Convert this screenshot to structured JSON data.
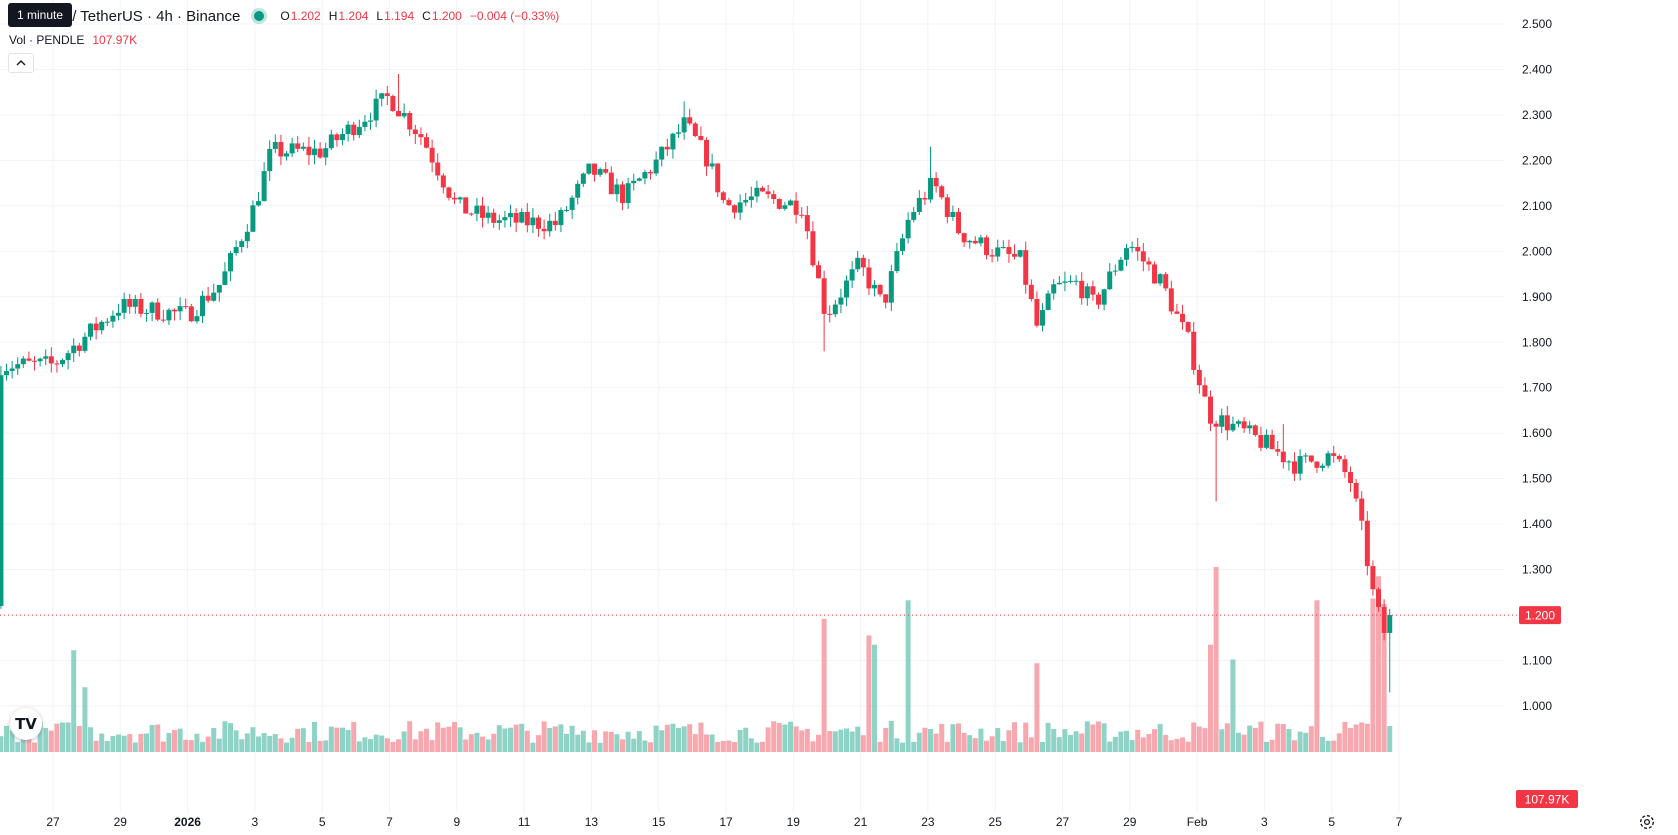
{
  "legend": {
    "symbol": "PENDLE / TetherUS · 4h · Binance",
    "open_label": "O",
    "open": "1.202",
    "high_label": "H",
    "high": "1.204",
    "low_label": "L",
    "low": "1.194",
    "close_label": "C",
    "close": "1.200",
    "change": "−0.004 (−0.33%)"
  },
  "tooltip": "1 minute",
  "volume_legend": {
    "label": "Vol · PENDLE",
    "value": "107.97K"
  },
  "price_tag": "1.200",
  "volume_tag": "107.97K",
  "colors": {
    "up": "#089981",
    "down": "#f23645",
    "up_vol": "#8fd3c7",
    "down_vol": "#f7a7ae",
    "grid": "#f0f3fa",
    "text": "#131722"
  },
  "icons": {
    "collapse": "chevron-up-icon",
    "logo": "tradingview-logo-icon",
    "settings": "gear-icon"
  },
  "chart_data": {
    "type": "candlestick",
    "title": "PENDLE / TetherUS · 4h · Binance",
    "ylim": [
      0.93,
      2.52
    ],
    "y_ticks": [
      "2.500",
      "2.400",
      "2.300",
      "2.200",
      "2.100",
      "2.000",
      "1.900",
      "1.800",
      "1.700",
      "1.600",
      "1.500",
      "1.400",
      "1.300",
      "1.200",
      "1.100",
      "1.000"
    ],
    "x_ticks": [
      "27",
      "29",
      "2026",
      "3",
      "5",
      "7",
      "9",
      "11",
      "13",
      "15",
      "17",
      "19",
      "21",
      "23",
      "25",
      "27",
      "29",
      "Feb",
      "3",
      "5",
      "7"
    ],
    "anchors": [
      {
        "day": 0,
        "price": 1.75
      },
      {
        "day": 2,
        "price": 1.88
      },
      {
        "day": 4,
        "price": 1.86
      },
      {
        "day": 5,
        "price": 1.93
      },
      {
        "day": 6,
        "price": 2.1
      },
      {
        "day": 6.5,
        "price": 2.22
      },
      {
        "day": 8,
        "price": 2.22
      },
      {
        "day": 10,
        "price": 2.34
      },
      {
        "day": 11,
        "price": 2.25
      },
      {
        "day": 12,
        "price": 2.1
      },
      {
        "day": 13,
        "price": 2.07
      },
      {
        "day": 15,
        "price": 2.06
      },
      {
        "day": 16,
        "price": 2.18
      },
      {
        "day": 17,
        "price": 2.12
      },
      {
        "day": 18,
        "price": 2.2
      },
      {
        "day": 18.8,
        "price": 2.28
      },
      {
        "day": 19.5,
        "price": 2.2
      },
      {
        "day": 20,
        "price": 2.1
      },
      {
        "day": 21,
        "price": 2.12
      },
      {
        "day": 22.3,
        "price": 2.1
      },
      {
        "day": 23,
        "price": 1.86
      },
      {
        "day": 24,
        "price": 1.97
      },
      {
        "day": 24.7,
        "price": 1.88
      },
      {
        "day": 25.5,
        "price": 2.08
      },
      {
        "day": 26.2,
        "price": 2.15
      },
      {
        "day": 27,
        "price": 2.04
      },
      {
        "day": 28,
        "price": 2.0
      },
      {
        "day": 28.8,
        "price": 1.98
      },
      {
        "day": 29.3,
        "price": 1.83
      },
      {
        "day": 29.8,
        "price": 1.92
      },
      {
        "day": 30.5,
        "price": 1.93
      },
      {
        "day": 31,
        "price": 1.88
      },
      {
        "day": 32,
        "price": 2.02
      },
      {
        "day": 33,
        "price": 1.93
      },
      {
        "day": 33.8,
        "price": 1.8
      },
      {
        "day": 34.4,
        "price": 1.64
      },
      {
        "day": 35,
        "price": 1.62
      },
      {
        "day": 36,
        "price": 1.58
      },
      {
        "day": 37,
        "price": 1.53
      },
      {
        "day": 38,
        "price": 1.55
      },
      {
        "day": 38.6,
        "price": 1.5
      },
      {
        "day": 39,
        "price": 1.37
      },
      {
        "day": 39.3,
        "price": 1.24
      },
      {
        "day": 39.6,
        "price": 1.16
      },
      {
        "day": 39.8,
        "price": 1.2
      }
    ],
    "events": [
      {
        "day": 23,
        "low": 1.78
      },
      {
        "day": 34.6,
        "low": 1.45
      },
      {
        "day": 36.7,
        "high": 1.62
      },
      {
        "day": 10.2,
        "high": 2.39
      },
      {
        "day": 18.8,
        "high": 2.33
      },
      {
        "day": 26.2,
        "high": 2.23
      },
      {
        "day": 39.7,
        "low": 1.03
      }
    ],
    "volume_spikes": [
      {
        "day": 0.6,
        "value": 0.55
      },
      {
        "day": 0.9,
        "value": 0.35
      },
      {
        "day": 23,
        "value": 0.72
      },
      {
        "day": 24.3,
        "value": 0.63
      },
      {
        "day": 24.5,
        "value": 0.58
      },
      {
        "day": 25.5,
        "value": 0.82
      },
      {
        "day": 29.3,
        "value": 0.48
      },
      {
        "day": 34.6,
        "value": 1.0
      },
      {
        "day": 34.5,
        "value": 0.58
      },
      {
        "day": 35.1,
        "value": 0.5
      },
      {
        "day": 37.6,
        "value": 0.82
      },
      {
        "day": 39.2,
        "value": 0.83
      },
      {
        "day": 39.5,
        "value": 0.95
      },
      {
        "day": 39.6,
        "value": 0.8
      }
    ],
    "last_price": 1.2,
    "last_volume": "107.97K"
  }
}
